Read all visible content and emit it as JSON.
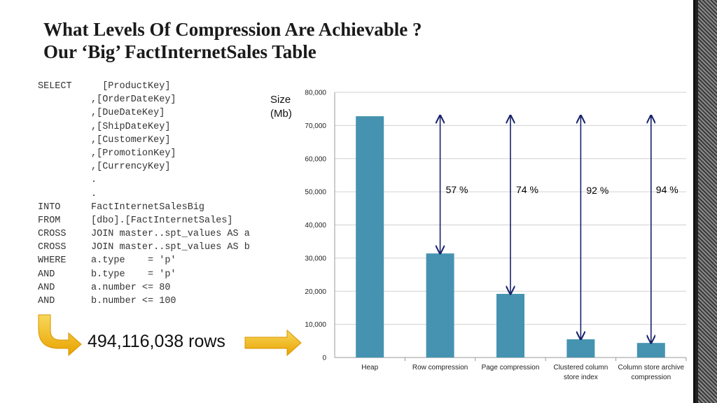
{
  "slide": {
    "title_line1": "What Levels Of Compression Are Achievable ?",
    "title_line2": "Our ‘Big’ FactInternetSales Table"
  },
  "sql": {
    "lines": [
      {
        "kw": "SELECT",
        "text": "  [ProductKey]"
      },
      {
        "kw": "",
        "text": ",[OrderDateKey]"
      },
      {
        "kw": "",
        "text": ",[DueDateKey]"
      },
      {
        "kw": "",
        "text": ",[ShipDateKey]"
      },
      {
        "kw": "",
        "text": ",[CustomerKey]"
      },
      {
        "kw": "",
        "text": ",[PromotionKey]"
      },
      {
        "kw": "",
        "text": ",[CurrencyKey]"
      },
      {
        "kw": "",
        "text": "."
      },
      {
        "kw": "",
        "text": "."
      },
      {
        "kw": "INTO",
        "text": "FactInternetSalesBig"
      },
      {
        "kw": "FROM",
        "text": "[dbo].[FactInternetSales]"
      },
      {
        "kw": "CROSS",
        "text": "JOIN master..spt_values AS a"
      },
      {
        "kw": "CROSS",
        "text": "JOIN master..spt_values AS b"
      },
      {
        "kw": "WHERE",
        "text": "a.type    = 'p'"
      },
      {
        "kw": "AND",
        "text": "b.type    = 'p'"
      },
      {
        "kw": "AND",
        "text": "a.number <= 80"
      },
      {
        "kw": "AND",
        "text": "b.number <= 100"
      }
    ]
  },
  "rows_label": "494,116,038 rows",
  "colors": {
    "bar": "#4593b0",
    "arrow": "#16226a",
    "callout_arrow_top": "#f8d85a",
    "callout_arrow_bottom": "#e9a200",
    "gridline": "#d0d0d0"
  },
  "chart_data": {
    "type": "bar",
    "ylabel": "Size\n(Mb)",
    "ylabel_lines": [
      "Size",
      "(Mb)"
    ],
    "ylim": [
      0,
      80000
    ],
    "yticks": [
      0,
      10000,
      20000,
      30000,
      40000,
      50000,
      60000,
      70000,
      80000
    ],
    "ytick_labels": [
      "0",
      "10,000",
      "20,000",
      "30,000",
      "40,000",
      "50,000",
      "60,000",
      "70,000",
      "80,000"
    ],
    "grid": true,
    "categories": [
      [
        "Heap"
      ],
      [
        "Row compression"
      ],
      [
        "Page compression"
      ],
      [
        "Clustered column",
        "store index"
      ],
      [
        "Column store archive",
        "compression"
      ]
    ],
    "values": [
      72800,
      31400,
      19200,
      5500,
      4400
    ],
    "reduction_labels": [
      "",
      "57 %",
      "74 %",
      "92 %",
      "94 %"
    ],
    "arrow_top_value": 73000
  }
}
